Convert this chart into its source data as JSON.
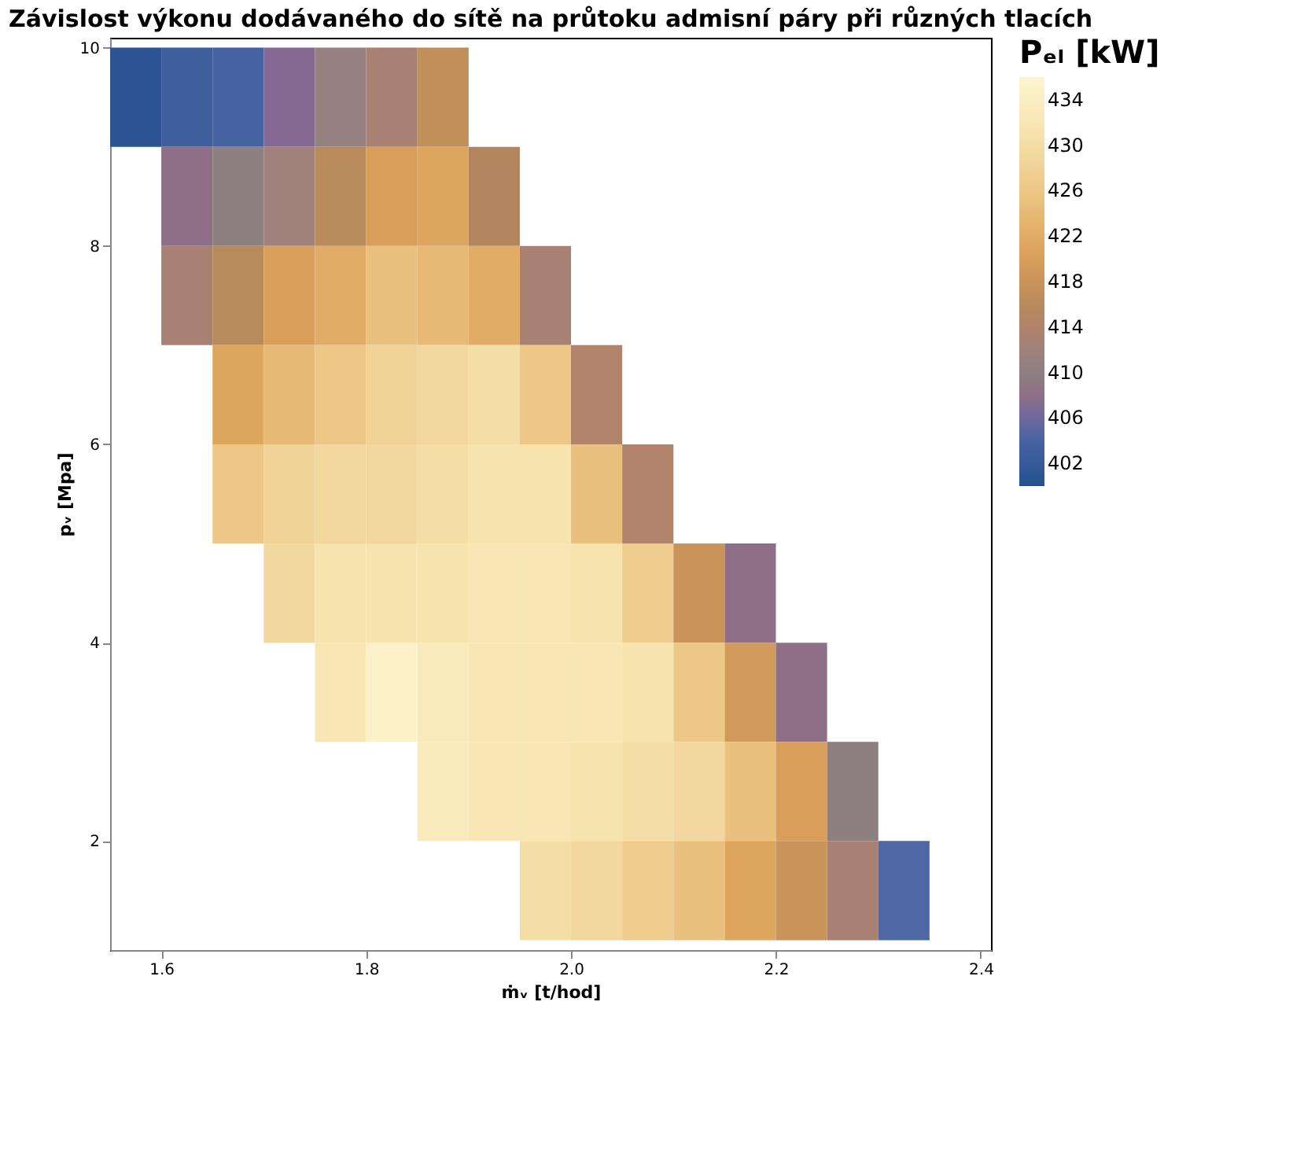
{
  "chart_data": {
    "type": "heatmap",
    "title": "Závislost výkonu dodávaného do sítě na průtoku admisní páry při různých tlacích",
    "xlabel": "ṁᵥ [t/hod]",
    "ylabel": "pᵥ [Mpa]",
    "clabel": "Pₑₗ [kW]",
    "x": [
      1.575,
      1.625,
      1.675,
      1.725,
      1.775,
      1.825,
      1.875,
      1.925,
      1.975,
      2.025,
      2.075,
      2.125,
      2.175,
      2.225,
      2.275,
      2.325,
      2.375
    ],
    "y": [
      9.5,
      8.5,
      7.5,
      6.5,
      5.5,
      4.5,
      3.5,
      2.5,
      1.5
    ],
    "cells": [
      [
        401,
        403,
        404,
        407,
        411,
        413,
        417,
        null,
        null,
        null,
        null,
        null,
        null,
        null,
        null,
        null,
        null
      ],
      [
        null,
        408,
        410,
        412,
        416,
        420,
        421,
        415,
        null,
        null,
        null,
        null,
        null,
        null,
        null,
        null,
        null
      ],
      [
        null,
        413,
        416,
        420,
        422,
        425,
        424,
        422,
        413,
        null,
        null,
        null,
        null,
        null,
        null,
        null,
        null
      ],
      [
        null,
        null,
        421,
        424,
        426,
        428,
        429,
        430,
        426,
        414,
        null,
        null,
        null,
        null,
        null,
        null,
        null
      ],
      [
        null,
        null,
        426,
        428,
        429,
        429,
        430,
        431,
        431,
        425,
        414,
        null,
        null,
        null,
        null,
        null,
        null
      ],
      [
        null,
        null,
        null,
        429,
        431,
        431,
        431,
        432,
        432,
        431,
        427,
        418,
        408,
        null,
        null,
        null,
        null
      ],
      [
        null,
        null,
        null,
        null,
        432,
        435,
        433,
        432,
        432,
        432,
        431,
        426,
        419,
        408,
        null,
        null,
        null
      ],
      [
        null,
        null,
        null,
        null,
        null,
        null,
        433,
        432,
        432,
        431,
        430,
        429,
        425,
        420,
        410,
        null,
        null
      ],
      [
        null,
        null,
        null,
        null,
        null,
        null,
        null,
        null,
        430,
        429,
        427,
        425,
        421,
        418,
        413,
        405,
        null
      ]
    ],
    "colors": [
      "#24508f",
      "#4f69a6",
      "#8c8282",
      "#b4875a",
      "#dda25a",
      "#ebc584",
      "#f7e2ad",
      "#fdf5d0"
    ],
    "clim": [
      400,
      436
    ],
    "cticks": [
      402,
      406,
      410,
      414,
      418,
      422,
      426,
      430,
      434
    ],
    "xlim": [
      1.55,
      2.41
    ],
    "xticks": [
      1.6,
      1.8,
      {
        "value": 2.0,
        "label": "2.0"
      },
      2.2,
      2.4
    ],
    "ylim": [
      0.9,
      10.1
    ],
    "yticks": [
      2,
      4,
      6,
      8,
      10
    ],
    "grid": false
  }
}
